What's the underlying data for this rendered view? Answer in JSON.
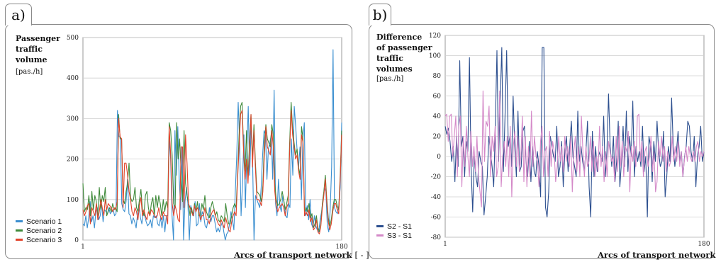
{
  "panel_a": {
    "tab": "a)",
    "ylabel_title": [
      "Passenger",
      "traffic",
      "volume"
    ],
    "ylabel_unit": "[pas./h]",
    "xlabel": "Arcs of transport network",
    "xlabel_unit": "[ - ]",
    "legend": [
      "Scenario 1",
      "Scenario 2",
      "Scenario 3"
    ]
  },
  "panel_b": {
    "tab": "b)",
    "ylabel_title": [
      "Difference",
      "of passenger",
      "traffic",
      "volumes"
    ],
    "ylabel_unit": "[pas./h]",
    "xlabel": "Arcs of transport network",
    "xlabel_unit": "[ - ]",
    "legend": [
      "S2 - S1",
      "S3 - S1"
    ]
  },
  "chart_data": [
    {
      "type": "line",
      "x_ticks": [
        1,
        180
      ],
      "xlim": [
        1,
        180
      ],
      "ylim": [
        0,
        500
      ],
      "yticks": [
        0,
        100,
        200,
        300,
        400,
        500
      ],
      "grid": true,
      "legend_position": "bottom-left",
      "series": [
        {
          "name": "Scenario 1",
          "color": "#3b8fd0",
          "values": [
            40,
            35,
            60,
            30,
            55,
            95,
            45,
            60,
            30,
            70,
            80,
            50,
            60,
            90,
            45,
            75,
            70,
            65,
            80,
            65,
            70,
            75,
            60,
            65,
            320,
            255,
            255,
            90,
            75,
            70,
            95,
            150,
            65,
            60,
            40,
            55,
            45,
            30,
            65,
            90,
            55,
            40,
            70,
            60,
            45,
            35,
            40,
            50,
            30,
            60,
            55,
            60,
            40,
            35,
            55,
            30,
            60,
            20,
            60,
            60,
            250,
            200,
            60,
            0,
            270,
            160,
            280,
            150,
            75,
            230,
            0,
            95,
            130,
            90,
            0,
            85,
            70,
            60,
            95,
            35,
            40,
            90,
            45,
            70,
            60,
            35,
            30,
            50,
            80,
            45,
            60,
            60,
            40,
            20,
            30,
            20,
            35,
            45,
            20,
            0,
            15,
            20,
            40,
            70,
            50,
            25,
            120,
            210,
            340,
            240,
            60,
            140,
            260,
            80,
            220,
            330,
            160,
            280,
            200,
            0,
            110,
            100,
            90,
            80,
            130,
            210,
            270,
            260,
            150,
            225,
            240,
            260,
            150,
            370,
            90,
            60,
            150,
            85,
            70,
            110,
            90,
            60,
            55,
            90,
            80,
            250,
            160,
            330,
            280,
            220,
            180,
            230,
            100,
            250,
            290,
            60,
            85,
            50,
            100,
            40,
            30,
            60,
            35,
            25,
            20,
            50,
            70,
            100,
            130,
            120,
            35,
            20,
            75,
            180,
            470,
            80,
            70,
            65,
            85,
            130,
            290
          ]
        },
        {
          "name": "Scenario 2",
          "color": "#3f8a3a",
          "values": [
            140,
            70,
            80,
            75,
            110,
            60,
            120,
            75,
            110,
            95,
            60,
            130,
            75,
            110,
            95,
            130,
            60,
            70,
            80,
            70,
            90,
            75,
            80,
            70,
            310,
            250,
            250,
            100,
            90,
            120,
            140,
            190,
            105,
            95,
            100,
            130,
            80,
            70,
            100,
            125,
            75,
            60,
            110,
            120,
            80,
            60,
            90,
            105,
            60,
            110,
            80,
            110,
            90,
            60,
            100,
            70,
            95,
            80,
            290,
            270,
            210,
            90,
            80,
            290,
            200,
            250,
            170,
            95,
            270,
            140,
            110,
            90,
            60,
            80,
            60,
            90,
            70,
            95,
            60,
            60,
            90,
            75,
            110,
            70,
            60,
            55,
            80,
            95,
            80,
            60,
            70,
            50,
            45,
            60,
            55,
            45,
            90,
            60,
            40,
            40,
            60,
            80,
            90,
            80,
            160,
            260,
            330,
            340,
            230,
            170,
            270,
            150,
            240,
            310,
            200,
            285,
            190,
            120,
            115,
            110,
            95,
            135,
            240,
            285,
            250,
            240,
            230,
            285,
            260,
            140,
            100,
            85,
            90,
            100,
            120,
            100,
            75,
            90,
            110,
            240,
            340,
            275,
            240,
            210,
            225,
            180,
            160,
            280,
            250,
            70,
            80,
            70,
            90,
            55,
            65,
            30,
            40,
            60,
            30,
            20,
            40,
            90,
            120,
            160,
            100,
            55,
            35,
            50,
            80,
            100,
            100,
            85,
            75,
            160,
            270
          ]
        },
        {
          "name": "Scenario 3",
          "color": "#e2432b",
          "values": [
            75,
            60,
            70,
            85,
            90,
            40,
            80,
            70,
            60,
            90,
            50,
            70,
            100,
            80,
            60,
            100,
            75,
            90,
            85,
            80,
            70,
            80,
            75,
            95,
            300,
            255,
            250,
            80,
            190,
            190,
            160,
            120,
            100,
            70,
            60,
            80,
            70,
            50,
            85,
            105,
            60,
            75,
            60,
            50,
            70,
            60,
            75,
            70,
            60,
            55,
            60,
            80,
            60,
            50,
            70,
            60,
            60,
            40,
            280,
            210,
            90,
            60,
            85,
            70,
            50,
            45,
            230,
            230,
            80,
            260,
            190,
            90,
            80,
            70,
            60,
            85,
            70,
            80,
            70,
            50,
            60,
            60,
            80,
            50,
            50,
            40,
            60,
            70,
            75,
            60,
            50,
            40,
            35,
            50,
            40,
            30,
            55,
            40,
            25,
            20,
            45,
            60,
            70,
            60,
            150,
            230,
            310,
            320,
            220,
            150,
            200,
            140,
            220,
            310,
            180,
            270,
            175,
            100,
            100,
            95,
            85,
            120,
            210,
            280,
            230,
            220,
            210,
            270,
            230,
            120,
            85,
            70,
            80,
            85,
            90,
            80,
            60,
            80,
            90,
            220,
            320,
            260,
            230,
            200,
            210,
            170,
            150,
            260,
            240,
            60,
            70,
            60,
            75,
            45,
            55,
            25,
            30,
            50,
            20,
            15,
            35,
            80,
            110,
            150,
            90,
            45,
            25,
            40,
            70,
            90,
            90,
            75,
            65,
            150,
            260
          ]
        }
      ]
    },
    {
      "type": "line",
      "x_ticks": [
        1,
        180
      ],
      "xlim": [
        1,
        180
      ],
      "ylim": [
        -80,
        120
      ],
      "yticks": [
        -80,
        -60,
        -40,
        -20,
        0,
        20,
        40,
        60,
        80,
        100,
        120
      ],
      "grid": true,
      "legend_position": "bottom-left",
      "series": [
        {
          "name": "S2 - S1",
          "color": "#2c4f8f",
          "values": [
            30,
            22,
            28,
            15,
            -5,
            10,
            -25,
            20,
            -10,
            95,
            10,
            20,
            -20,
            15,
            5,
            98,
            -10,
            -55,
            0,
            -20,
            -30,
            5,
            -5,
            -10,
            -58,
            -40,
            -20,
            20,
            5,
            -10,
            -30,
            30,
            105,
            -5,
            55,
            108,
            -15,
            40,
            105,
            10,
            20,
            -10,
            60,
            10,
            -20,
            45,
            -15,
            -10,
            25,
            30,
            -5,
            -20,
            15,
            -25,
            10,
            -15,
            -20,
            5,
            -10,
            -40,
            108,
            108,
            -50,
            -60,
            -35,
            20,
            10,
            0,
            -5,
            30,
            -20,
            -10,
            15,
            -30,
            5,
            20,
            -15,
            10,
            35,
            0,
            -10,
            -20,
            45,
            -5,
            10,
            -5,
            -15,
            5,
            35,
            -30,
            -60,
            25,
            -20,
            10,
            -15,
            5,
            0,
            -5,
            40,
            -20,
            5,
            62,
            10,
            -10,
            20,
            -25,
            -5,
            35,
            -30,
            -5,
            30,
            -10,
            45,
            -15,
            20,
            0,
            55,
            -20,
            10,
            -5,
            5,
            -10,
            30,
            -15,
            0,
            -60,
            20,
            10,
            -25,
            15,
            -5,
            35,
            5,
            -10,
            -5,
            25,
            -40,
            -20,
            10,
            -5,
            58,
            10,
            -10,
            5,
            25,
            -5,
            5,
            -20,
            0,
            10,
            35,
            30,
            5,
            -5,
            20,
            -30,
            0,
            10,
            30,
            -5,
            5
          ]
        },
        {
          "name": "S3 - S1",
          "color": "#d489c8",
          "values": [
            40,
            42,
            15,
            40,
            42,
            0,
            20,
            40,
            -20,
            30,
            40,
            -30,
            20,
            -10,
            30,
            0,
            -20,
            25,
            -10,
            10,
            -15,
            20,
            -20,
            -35,
            -50,
            65,
            -5,
            35,
            30,
            50,
            -20,
            20,
            5,
            30,
            -20,
            -10,
            65,
            -30,
            0,
            15,
            -10,
            20,
            -20,
            30,
            -40,
            10,
            25,
            -10,
            20,
            -15,
            0,
            40,
            -25,
            20,
            -30,
            10,
            -20,
            45,
            -10,
            20,
            0,
            -5,
            -30,
            15,
            30,
            -20,
            5,
            10,
            -20,
            25,
            -10,
            15,
            5,
            -25,
            -10,
            20,
            -5,
            10,
            -15,
            20,
            -5,
            10,
            -10,
            20,
            -35,
            5,
            20,
            -15,
            10,
            -20,
            40,
            5,
            -20,
            10,
            -10,
            -5,
            20,
            -15,
            15,
            -20,
            0,
            -15,
            30,
            -10,
            10,
            -25,
            5,
            -20,
            15,
            5,
            -5,
            0,
            -25,
            20,
            -15,
            30,
            -10,
            15,
            -20,
            10,
            5,
            25,
            -35,
            10,
            -5,
            15,
            -10,
            40,
            42,
            -5,
            15,
            -20,
            5,
            10,
            -10,
            0,
            20,
            -15,
            5,
            -35,
            -25,
            15,
            0,
            20,
            -5,
            10,
            -15,
            5,
            -10,
            -5,
            20,
            -5,
            10,
            -5,
            15,
            -10,
            5,
            -20,
            -5,
            10,
            -5,
            10,
            0,
            -5,
            5,
            -5,
            10,
            15,
            -5,
            5,
            0,
            5
          ]
        }
      ]
    }
  ]
}
